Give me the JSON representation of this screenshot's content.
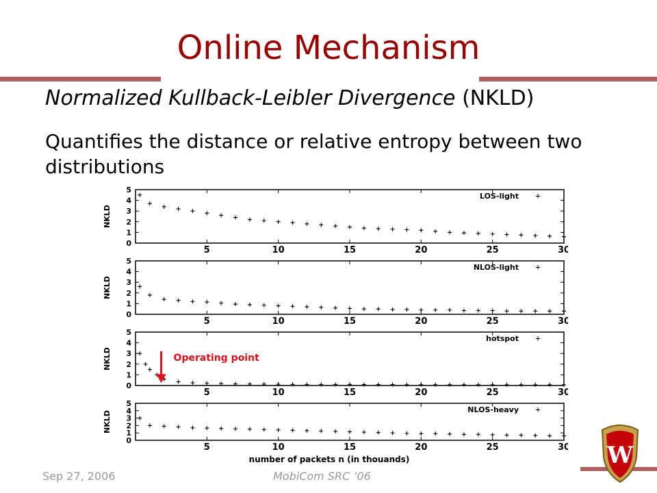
{
  "slide": {
    "title": "Online Mechanism",
    "subtitle_italic": "Normalized Kullback-Leibler Divergence",
    "subtitle_plain": " (NKLD)",
    "description": "Quantifies the distance or relative entropy between two distributions",
    "footer_date": "Sep 27, 2006",
    "footer_conf": "MobiCom SRC ‘06"
  },
  "colors": {
    "title": "#990000",
    "accent_bar": "#b06060",
    "annotation": "#e0101a",
    "marker": "#000000"
  },
  "chart_data": [
    {
      "type": "scatter",
      "ylabel": "NKLD",
      "legend": "LOS-light",
      "marker": "+",
      "legend_position": "top-right",
      "xlim": [
        0,
        30
      ],
      "ylim": [
        0,
        5
      ],
      "xticks": [
        5,
        10,
        15,
        20,
        25,
        30
      ],
      "yticks": [
        0,
        1,
        2,
        3,
        4,
        5
      ],
      "x": [
        0.3,
        1,
        2,
        3,
        4,
        5,
        6,
        7,
        8,
        9,
        10,
        11,
        12,
        13,
        14,
        15,
        16,
        17,
        18,
        19,
        20,
        21,
        22,
        23,
        24,
        25,
        26,
        27,
        28,
        29,
        30
      ],
      "y": [
        4.5,
        3.7,
        3.4,
        3.2,
        3.0,
        2.8,
        2.6,
        2.4,
        2.2,
        2.1,
        2.0,
        1.9,
        1.8,
        1.7,
        1.6,
        1.5,
        1.4,
        1.35,
        1.3,
        1.25,
        1.2,
        1.1,
        1.0,
        0.95,
        0.9,
        0.85,
        0.8,
        0.75,
        0.7,
        0.65,
        0.6
      ]
    },
    {
      "type": "scatter",
      "ylabel": "NKLD",
      "legend": "NLOS-light",
      "marker": "+",
      "legend_position": "top-right",
      "xlim": [
        0,
        30
      ],
      "ylim": [
        0,
        5
      ],
      "xticks": [
        5,
        10,
        15,
        20,
        25,
        30
      ],
      "yticks": [
        0,
        1,
        2,
        3,
        4,
        5
      ],
      "x": [
        0.3,
        1,
        2,
        3,
        4,
        5,
        6,
        7,
        8,
        9,
        10,
        11,
        12,
        13,
        14,
        15,
        16,
        17,
        18,
        19,
        20,
        21,
        22,
        23,
        24,
        25,
        26,
        27,
        28,
        29,
        30
      ],
      "y": [
        2.6,
        1.8,
        1.4,
        1.3,
        1.2,
        1.15,
        1.05,
        0.95,
        0.9,
        0.85,
        0.8,
        0.75,
        0.7,
        0.65,
        0.6,
        0.55,
        0.5,
        0.5,
        0.45,
        0.45,
        0.4,
        0.4,
        0.4,
        0.35,
        0.35,
        0.35,
        0.3,
        0.3,
        0.3,
        0.3,
        0.3
      ]
    },
    {
      "type": "scatter",
      "ylabel": "NKLD",
      "legend": "hotspot",
      "marker": "+",
      "legend_position": "top-right",
      "xlim": [
        0,
        30
      ],
      "ylim": [
        0,
        5
      ],
      "xticks": [
        5,
        10,
        15,
        20,
        25,
        30
      ],
      "yticks": [
        0,
        1,
        2,
        3,
        4,
        5
      ],
      "annotation": {
        "text": "Operating point",
        "x": 1.8,
        "y": 0.3
      },
      "x": [
        0.3,
        0.7,
        1,
        1.5,
        2,
        3,
        4,
        5,
        6,
        7,
        8,
        9,
        10,
        11,
        12,
        13,
        14,
        15,
        16,
        17,
        18,
        19,
        20,
        21,
        22,
        23,
        24,
        25,
        26,
        27,
        28,
        29,
        30
      ],
      "y": [
        3.0,
        2.0,
        1.5,
        1.0,
        0.6,
        0.35,
        0.25,
        0.2,
        0.18,
        0.15,
        0.14,
        0.13,
        0.12,
        0.11,
        0.1,
        0.1,
        0.1,
        0.1,
        0.09,
        0.09,
        0.09,
        0.08,
        0.08,
        0.08,
        0.08,
        0.08,
        0.07,
        0.07,
        0.07,
        0.07,
        0.07,
        0.07,
        0.07
      ]
    },
    {
      "type": "scatter",
      "ylabel": "NKLD",
      "legend": "NLOS-heavy",
      "marker": "+",
      "legend_position": "top-right",
      "xlim": [
        0,
        30
      ],
      "ylim": [
        0,
        5
      ],
      "xticks": [
        5,
        10,
        15,
        20,
        25,
        30
      ],
      "yticks": [
        0,
        1,
        2,
        3,
        4,
        5
      ],
      "xlabel": "number of packets n (in thouands)",
      "x": [
        0.3,
        1,
        2,
        3,
        4,
        5,
        6,
        7,
        8,
        9,
        10,
        11,
        12,
        13,
        14,
        15,
        16,
        17,
        18,
        19,
        20,
        21,
        22,
        23,
        24,
        25,
        26,
        27,
        28,
        29,
        30
      ],
      "y": [
        3.0,
        2.0,
        1.9,
        1.8,
        1.7,
        1.65,
        1.6,
        1.55,
        1.5,
        1.45,
        1.4,
        1.35,
        1.3,
        1.25,
        1.2,
        1.15,
        1.1,
        1.05,
        1.0,
        0.95,
        0.9,
        0.9,
        0.85,
        0.8,
        0.8,
        0.75,
        0.7,
        0.7,
        0.65,
        0.6,
        0.6
      ]
    }
  ]
}
